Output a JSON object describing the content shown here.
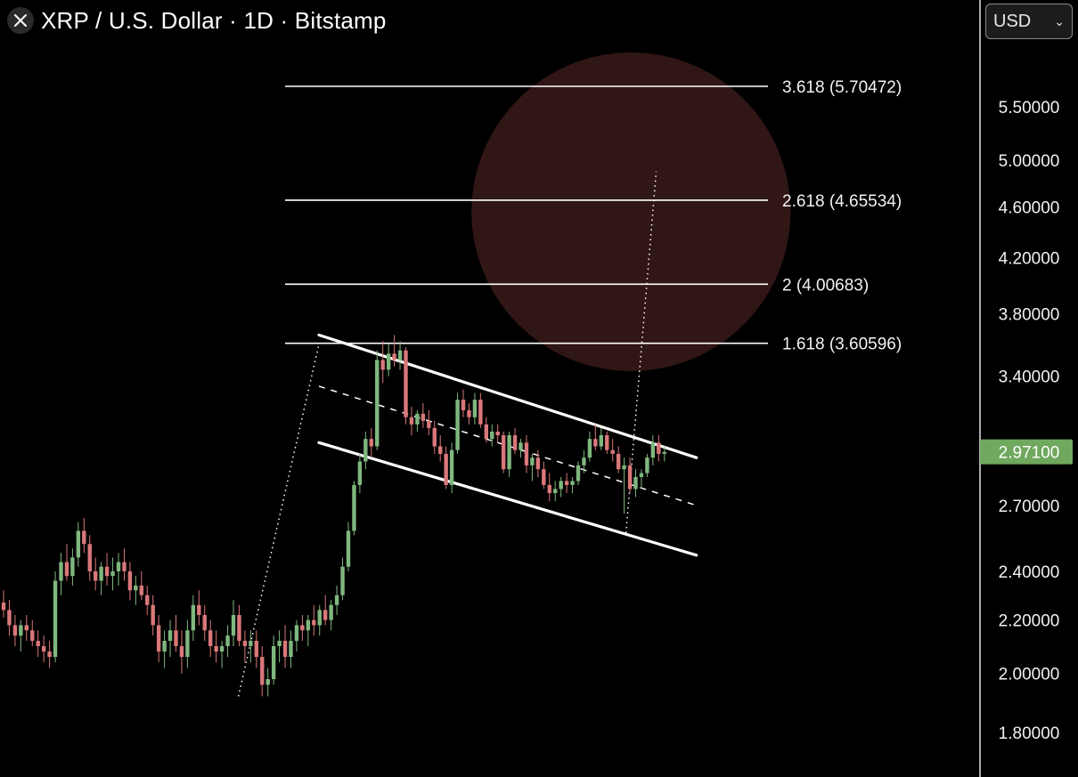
{
  "header": {
    "title": "XRP / U.S. Dollar · 1D · Bitstamp",
    "close_icon": "close-icon"
  },
  "currency_select": {
    "value": "USD",
    "icon": "chevron-down-icon"
  },
  "colors": {
    "up": "#7fb77e",
    "down": "#d9777a",
    "price_tag": "#6fa85e",
    "target_zone": "#3a1a1a",
    "lines": "#ffffff"
  },
  "chart_data": {
    "type": "candlestick",
    "symbol": "XRP / U.S. Dollar",
    "interval": "1D",
    "exchange": "Bitstamp",
    "y_scale": "log",
    "y_ticks": [
      "5.50000",
      "5.00000",
      "4.60000",
      "4.20000",
      "3.80000",
      "3.40000",
      "2.70000",
      "2.40000",
      "2.20000",
      "2.00000",
      "1.80000"
    ],
    "last_price": "2.97100",
    "fib_extensions": [
      {
        "label": "3.618 (5.70472)",
        "ratio": 3.618,
        "price": 5.70472
      },
      {
        "label": "2.618 (4.65534)",
        "ratio": 2.618,
        "price": 4.65534
      },
      {
        "label": "2 (4.00683)",
        "ratio": 2,
        "price": 4.00683
      },
      {
        "label": "1.618 (3.60596)",
        "ratio": 1.618,
        "price": 3.60596
      }
    ],
    "channel": {
      "upper": [
        [
          0,
          3.66
        ],
        [
          75,
          2.94
        ]
      ],
      "lower": [
        [
          0,
          3.02
        ],
        [
          75,
          2.47
        ]
      ],
      "mid": [
        [
          0,
          3.34
        ],
        [
          75,
          2.7
        ]
      ]
    },
    "projection_lines": [
      {
        "from": [
          -16,
          1.92
        ],
        "to": [
          0,
          3.6
        ]
      },
      {
        "from": [
          61,
          2.57
        ],
        "to": [
          67,
          4.9
        ]
      }
    ],
    "target_zone_center": [
      62,
      4.56
    ],
    "candles": [
      [
        2.27,
        2.32,
        2.21,
        2.24
      ],
      [
        2.24,
        2.28,
        2.14,
        2.18
      ],
      [
        2.18,
        2.22,
        2.1,
        2.14
      ],
      [
        2.14,
        2.2,
        2.08,
        2.18
      ],
      [
        2.18,
        2.22,
        2.12,
        2.16
      ],
      [
        2.16,
        2.2,
        2.1,
        2.12
      ],
      [
        2.12,
        2.16,
        2.06,
        2.1
      ],
      [
        2.1,
        2.14,
        2.04,
        2.08
      ],
      [
        2.08,
        2.12,
        2.02,
        2.06
      ],
      [
        2.06,
        2.4,
        2.04,
        2.36
      ],
      [
        2.36,
        2.48,
        2.3,
        2.44
      ],
      [
        2.44,
        2.52,
        2.36,
        2.38
      ],
      [
        2.38,
        2.5,
        2.34,
        2.46
      ],
      [
        2.46,
        2.62,
        2.42,
        2.58
      ],
      [
        2.58,
        2.64,
        2.48,
        2.52
      ],
      [
        2.52,
        2.56,
        2.36,
        2.4
      ],
      [
        2.4,
        2.46,
        2.32,
        2.36
      ],
      [
        2.36,
        2.44,
        2.3,
        2.42
      ],
      [
        2.42,
        2.48,
        2.34,
        2.38
      ],
      [
        2.38,
        2.46,
        2.32,
        2.4
      ],
      [
        2.4,
        2.48,
        2.34,
        2.44
      ],
      [
        2.44,
        2.5,
        2.36,
        2.4
      ],
      [
        2.4,
        2.44,
        2.28,
        2.32
      ],
      [
        2.32,
        2.38,
        2.26,
        2.34
      ],
      [
        2.34,
        2.4,
        2.28,
        2.3
      ],
      [
        2.3,
        2.34,
        2.22,
        2.26
      ],
      [
        2.26,
        2.3,
        2.14,
        2.18
      ],
      [
        2.18,
        2.22,
        2.04,
        2.08
      ],
      [
        2.08,
        2.16,
        2.02,
        2.12
      ],
      [
        2.12,
        2.2,
        2.06,
        2.16
      ],
      [
        2.16,
        2.22,
        2.08,
        2.1
      ],
      [
        2.1,
        2.16,
        2.0,
        2.06
      ],
      [
        2.06,
        2.2,
        2.02,
        2.16
      ],
      [
        2.16,
        2.3,
        2.12,
        2.26
      ],
      [
        2.26,
        2.32,
        2.18,
        2.22
      ],
      [
        2.22,
        2.26,
        2.12,
        2.16
      ],
      [
        2.16,
        2.2,
        2.06,
        2.1
      ],
      [
        2.1,
        2.16,
        2.04,
        2.08
      ],
      [
        2.08,
        2.12,
        2.02,
        2.1
      ],
      [
        2.1,
        2.18,
        2.06,
        2.14
      ],
      [
        2.14,
        2.28,
        2.1,
        2.22
      ],
      [
        2.22,
        2.26,
        2.1,
        2.12
      ],
      [
        2.12,
        2.16,
        2.04,
        2.1
      ],
      [
        2.1,
        2.16,
        2.04,
        2.12
      ],
      [
        2.12,
        2.16,
        2.02,
        2.06
      ],
      [
        2.06,
        2.1,
        1.92,
        1.96
      ],
      [
        1.96,
        2.02,
        1.92,
        1.98
      ],
      [
        1.98,
        2.14,
        1.96,
        2.1
      ],
      [
        2.1,
        2.16,
        2.04,
        2.12
      ],
      [
        2.12,
        2.18,
        2.02,
        2.06
      ],
      [
        2.06,
        2.16,
        2.02,
        2.12
      ],
      [
        2.12,
        2.2,
        2.08,
        2.18
      ],
      [
        2.18,
        2.22,
        2.12,
        2.16
      ],
      [
        2.16,
        2.22,
        2.1,
        2.2
      ],
      [
        2.2,
        2.26,
        2.14,
        2.18
      ],
      [
        2.18,
        2.26,
        2.14,
        2.24
      ],
      [
        2.24,
        2.3,
        2.18,
        2.2
      ],
      [
        2.2,
        2.28,
        2.16,
        2.26
      ],
      [
        2.26,
        2.34,
        2.22,
        2.3
      ],
      [
        2.3,
        2.46,
        2.28,
        2.42
      ],
      [
        2.42,
        2.62,
        2.4,
        2.58
      ],
      [
        2.58,
        2.82,
        2.56,
        2.8
      ],
      [
        2.8,
        2.96,
        2.76,
        2.92
      ],
      [
        2.92,
        3.08,
        2.88,
        3.04
      ],
      [
        3.04,
        3.1,
        2.94,
        3.0
      ],
      [
        3.0,
        3.56,
        2.98,
        3.5
      ],
      [
        3.5,
        3.62,
        3.36,
        3.44
      ],
      [
        3.44,
        3.6,
        3.4,
        3.54
      ],
      [
        3.54,
        3.66,
        3.46,
        3.5
      ],
      [
        3.5,
        3.62,
        3.44,
        3.56
      ],
      [
        3.56,
        3.58,
        3.12,
        3.16
      ],
      [
        3.16,
        3.22,
        3.06,
        3.12
      ],
      [
        3.12,
        3.2,
        3.08,
        3.18
      ],
      [
        3.18,
        3.24,
        3.1,
        3.14
      ],
      [
        3.14,
        3.2,
        3.06,
        3.1
      ],
      [
        3.1,
        3.14,
        2.96,
        3.0
      ],
      [
        3.0,
        3.06,
        2.92,
        2.96
      ],
      [
        2.96,
        3.0,
        2.78,
        2.8
      ],
      [
        2.8,
        3.02,
        2.76,
        2.98
      ],
      [
        2.98,
        3.3,
        2.96,
        3.26
      ],
      [
        3.26,
        3.32,
        3.16,
        3.2
      ],
      [
        3.2,
        3.24,
        3.12,
        3.16
      ],
      [
        3.16,
        3.3,
        3.12,
        3.26
      ],
      [
        3.26,
        3.3,
        3.1,
        3.12
      ],
      [
        3.12,
        3.16,
        3.02,
        3.04
      ],
      [
        3.04,
        3.12,
        3.0,
        3.08
      ],
      [
        3.08,
        3.12,
        3.02,
        3.06
      ],
      [
        3.06,
        3.08,
        2.86,
        2.88
      ],
      [
        2.88,
        3.08,
        2.84,
        3.06
      ],
      [
        3.06,
        3.1,
        2.96,
        2.98
      ],
      [
        2.98,
        3.04,
        2.94,
        3.02
      ],
      [
        3.02,
        3.06,
        2.86,
        2.9
      ],
      [
        2.9,
        2.96,
        2.82,
        2.94
      ],
      [
        2.94,
        2.98,
        2.84,
        2.88
      ],
      [
        2.88,
        2.92,
        2.78,
        2.8
      ],
      [
        2.8,
        2.86,
        2.72,
        2.76
      ],
      [
        2.76,
        2.82,
        2.72,
        2.78
      ],
      [
        2.78,
        2.84,
        2.74,
        2.82
      ],
      [
        2.82,
        2.86,
        2.76,
        2.8
      ],
      [
        2.8,
        2.84,
        2.76,
        2.82
      ],
      [
        2.82,
        2.92,
        2.8,
        2.9
      ],
      [
        2.9,
        2.98,
        2.86,
        2.94
      ],
      [
        2.94,
        3.08,
        2.92,
        3.04
      ],
      [
        3.04,
        3.12,
        2.98,
        3.0
      ],
      [
        3.0,
        3.1,
        2.98,
        3.06
      ],
      [
        3.06,
        3.08,
        2.96,
        2.98
      ],
      [
        2.98,
        3.04,
        2.92,
        2.96
      ],
      [
        2.96,
        3.0,
        2.86,
        2.88
      ],
      [
        2.88,
        2.94,
        2.66,
        2.9
      ],
      [
        2.9,
        2.94,
        2.76,
        2.78
      ],
      [
        2.78,
        2.88,
        2.74,
        2.84
      ],
      [
        2.84,
        2.88,
        2.78,
        2.86
      ],
      [
        2.86,
        2.96,
        2.84,
        2.94
      ],
      [
        2.94,
        3.06,
        2.9,
        3.02
      ],
      [
        3.02,
        3.06,
        2.92,
        2.96
      ],
      [
        2.96,
        3.0,
        2.92,
        2.97
      ]
    ]
  }
}
